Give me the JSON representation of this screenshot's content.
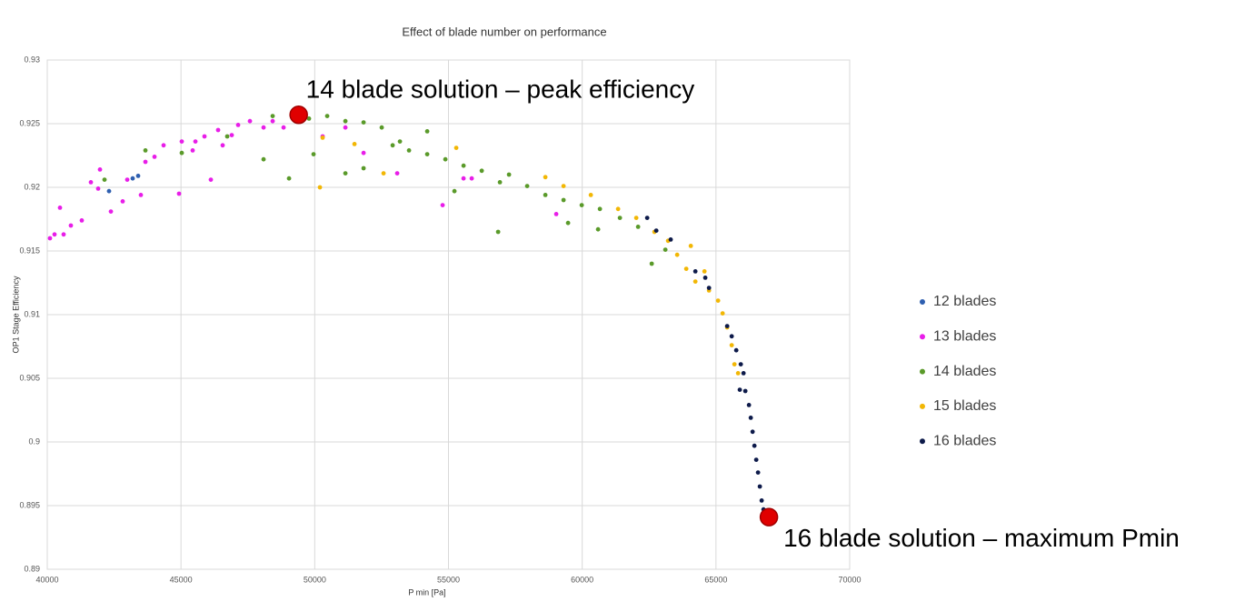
{
  "chart_data": {
    "type": "scatter",
    "title": "Effect of blade number on performance",
    "x_label": "P min [Pa]",
    "y_label": "OP1 Stage Efficiency",
    "xlim": [
      40000,
      70000
    ],
    "ylim": [
      0.89,
      0.93
    ],
    "xticks": [
      40000,
      45000,
      50000,
      55000,
      60000,
      65000,
      70000
    ],
    "yticks": [
      0.89,
      0.895,
      0.9,
      0.905,
      0.91,
      0.915,
      0.92,
      0.925,
      0.93
    ],
    "grid": true,
    "legend": "right",
    "series": [
      {
        "name": "12 blades",
        "color": "#2e5fb0",
        "x": [
          42310,
          43194,
          43398
        ],
        "values": [
          0.9197,
          0.9207,
          0.9209
        ]
      },
      {
        "name": "13 blades",
        "color": "#e81ee8",
        "x": [
          40102,
          40272,
          40612,
          40476,
          40883,
          41291,
          41631,
          41971,
          41903,
          42379,
          42820,
          42990,
          43500,
          43670,
          44010,
          44349,
          44927,
          45029,
          45437,
          45878,
          46116,
          46388,
          46898,
          47136,
          47577,
          48087,
          48427,
          48835,
          50296,
          51146,
          51826,
          53083,
          54781,
          55563,
          55869,
          59029,
          46558,
          45539
        ],
        "values": [
          0.916,
          0.9163,
          0.9163,
          0.9184,
          0.917,
          0.9174,
          0.9204,
          0.9214,
          0.9199,
          0.9181,
          0.9189,
          0.9206,
          0.9194,
          0.922,
          0.9224,
          0.9233,
          0.9195,
          0.9236,
          0.9229,
          0.924,
          0.9206,
          0.9245,
          0.9241,
          0.9249,
          0.9252,
          0.9247,
          0.9252,
          0.9247,
          0.924,
          0.9247,
          0.9227,
          0.9211,
          0.9186,
          0.9207,
          0.9207,
          0.9179,
          0.9233,
          0.9236
        ]
      },
      {
        "name": "14 blades",
        "color": "#5a9a2a",
        "x": [
          42141,
          43670,
          45029,
          46728,
          48087,
          49039,
          48427,
          49786,
          50466,
          51146,
          51826,
          52505,
          53185,
          51146,
          51826,
          53525,
          54205,
          54884,
          55564,
          56244,
          56856,
          56923,
          57263,
          57942,
          58622,
          59302,
          59471,
          59982,
          60661,
          60593,
          61409,
          62089,
          62599,
          63108,
          55223,
          54205,
          52913,
          49956
        ],
        "values": [
          0.9206,
          0.9229,
          0.9227,
          0.924,
          0.9222,
          0.9207,
          0.9256,
          0.9254,
          0.9256,
          0.9252,
          0.9251,
          0.9247,
          0.9236,
          0.9211,
          0.9215,
          0.9229,
          0.9226,
          0.9222,
          0.9217,
          0.9213,
          0.9165,
          0.9204,
          0.921,
          0.9201,
          0.9194,
          0.919,
          0.9172,
          0.9186,
          0.9183,
          0.9167,
          0.9176,
          0.9169,
          0.914,
          0.9151,
          0.9197,
          0.9244,
          0.9233,
          0.9226
        ]
      },
      {
        "name": "15 blades",
        "color": "#f2b705",
        "x": [
          50194,
          50296,
          51486,
          52573,
          55291,
          58622,
          59302,
          60322,
          61341,
          62021,
          62701,
          63210,
          63550,
          63890,
          64230,
          64740,
          65079,
          65249,
          65419,
          65589,
          65691,
          65827,
          64570,
          64060
        ],
        "values": [
          0.92,
          0.9239,
          0.9234,
          0.9211,
          0.9231,
          0.9208,
          0.9201,
          0.9194,
          0.9183,
          0.9176,
          0.9165,
          0.9158,
          0.9147,
          0.9136,
          0.9126,
          0.9119,
          0.9111,
          0.9101,
          0.909,
          0.9076,
          0.9061,
          0.9054,
          0.9134,
          0.9154
        ]
      },
      {
        "name": "16 blades",
        "color": "#0d1a4a",
        "x": [
          62429,
          62769,
          63309,
          64230,
          64601,
          64740,
          65419,
          65589,
          65759,
          65929,
          66031,
          66098,
          66234,
          66302,
          66370,
          66438,
          66506,
          66573,
          66641,
          66709,
          66777,
          65892
        ],
        "values": [
          0.9176,
          0.9166,
          0.9159,
          0.9134,
          0.9129,
          0.9121,
          0.9091,
          0.9083,
          0.9072,
          0.9061,
          0.9054,
          0.904,
          0.9029,
          0.9019,
          0.9008,
          0.8997,
          0.8986,
          0.8976,
          0.8965,
          0.8954,
          0.8947,
          0.9041
        ]
      }
    ],
    "annotations": [
      {
        "text": "14 blade solution – peak efficiency",
        "x": 49400,
        "y": 0.9257,
        "color": "#e00000"
      },
      {
        "text": "16 blade solution – maximum Pmin",
        "x": 66980,
        "y": 0.8941,
        "color": "#e00000"
      }
    ]
  }
}
